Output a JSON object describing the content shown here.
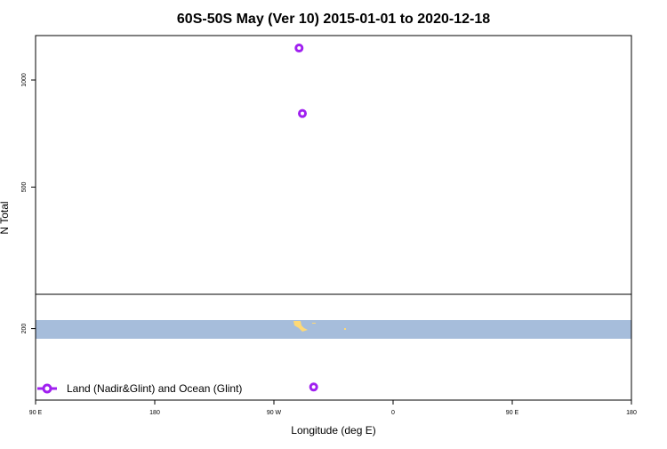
{
  "chart_data": {
    "type": "scatter",
    "title": "60S-50S May (Ver 10)   2015-01-01 to 2020-12-18",
    "xlabel": "Longitude (deg E)",
    "ylabel": "N Total",
    "x_ticks": [
      {
        "value": 90,
        "label": "90 E"
      },
      {
        "value": 180,
        "label": "180"
      },
      {
        "value": 270,
        "label": "90 W"
      },
      {
        "value": 360,
        "label": "0"
      },
      {
        "value": 450,
        "label": "90 E"
      },
      {
        "value": 540,
        "label": "180"
      }
    ],
    "y_ticks": [
      {
        "value": 1000,
        "label": "1000"
      },
      {
        "value": 500,
        "label": "500"
      },
      {
        "value": 200,
        "label": "200"
      }
    ],
    "xlim": [
      90,
      540
    ],
    "y_scale": "log",
    "series": [
      {
        "name": "Land (Nadir&Glint) and Ocean (Glint)",
        "color": "#a020f0",
        "points": [
          {
            "lon": -71,
            "n": 1230
          },
          {
            "lon": -68.5,
            "n": 805
          },
          {
            "lon": -60,
            "n": 137
          }
        ]
      }
    ],
    "legend_position": "bottom-left",
    "map_inset": {
      "ocean_color": "#a6bddb",
      "land_color": "#fed976",
      "lat_band": "60S-50S"
    }
  }
}
